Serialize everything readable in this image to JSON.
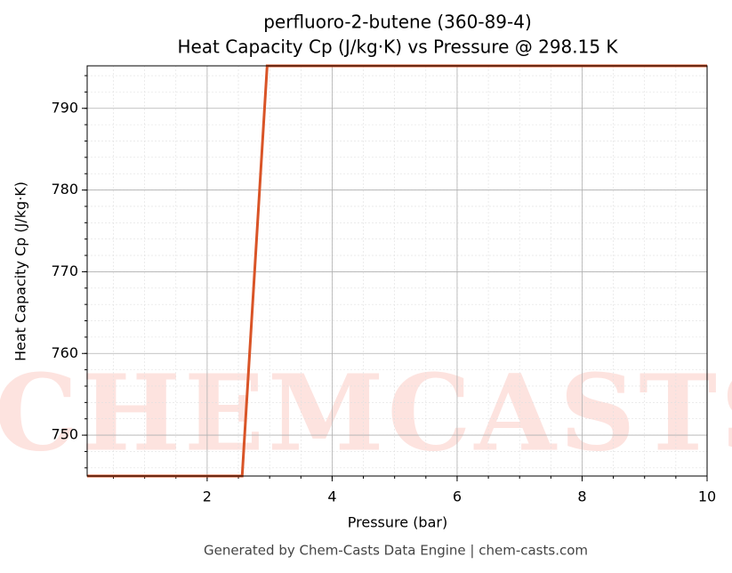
{
  "chart_data": {
    "type": "line",
    "title": "perfluoro-2-butene (360-89-4)",
    "subtitle": "Heat Capacity Cp (J/kg·K) vs Pressure @ 298.15 K",
    "x_label": "Pressure (bar)",
    "y_label": "Heat Capacity Cp (J/kg·K)",
    "footer": "Generated by Chem-Casts Data Engine | chem-casts.com",
    "watermark": "CHEMCASTS",
    "x": [
      0.08,
      2.56,
      2.96,
      10
    ],
    "series": [
      {
        "name": "Cp",
        "color": "#d95427",
        "values": [
          745.0,
          745.0,
          795.2,
          795.2
        ]
      }
    ],
    "xlim": [
      0.08,
      10
    ],
    "xticks": [
      2,
      4,
      6,
      8,
      10
    ],
    "ylim": [
      745.0,
      795.2
    ],
    "yticks": [
      750,
      760,
      770,
      780,
      790
    ],
    "grid": true,
    "minor_grid": true
  }
}
